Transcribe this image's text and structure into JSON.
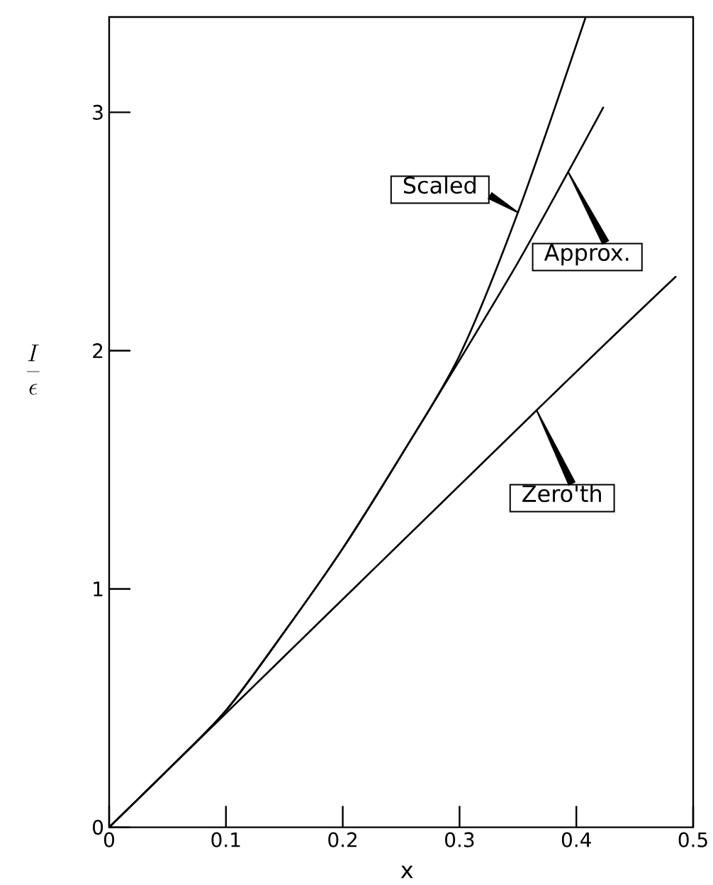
{
  "chart_data": {
    "type": "line",
    "xlabel": "x",
    "ylabel": "\\frac{I}{\\epsilon}",
    "xlim": [
      0,
      0.5
    ],
    "ylim": [
      0,
      3.4
    ],
    "xticks": [
      0,
      0.1,
      0.2,
      0.3,
      0.4,
      0.5
    ],
    "yticks": [
      0,
      1,
      2,
      3
    ],
    "marker": "none",
    "line_style": "solid",
    "series": [
      {
        "name": "Scaled",
        "color": "#000000",
        "x": [
          0,
          0.05,
          0.1,
          0.15,
          0.2,
          0.25,
          0.3,
          0.35,
          0.408
        ],
        "values": [
          0,
          0.24,
          0.49,
          0.82,
          1.17,
          1.56,
          1.98,
          2.58,
          3.4
        ]
      },
      {
        "name": "Approx.",
        "color": "#000000",
        "x": [
          0,
          0.05,
          0.1,
          0.15,
          0.2,
          0.25,
          0.3,
          0.35,
          0.393,
          0.423
        ],
        "values": [
          0,
          0.24,
          0.49,
          0.82,
          1.17,
          1.56,
          1.96,
          2.37,
          2.75,
          3.02
        ]
      },
      {
        "name": "Zero'th",
        "color": "#000000",
        "x": [
          0,
          0.366,
          0.485
        ],
        "values": [
          0,
          1.75,
          2.31
        ]
      }
    ]
  }
}
